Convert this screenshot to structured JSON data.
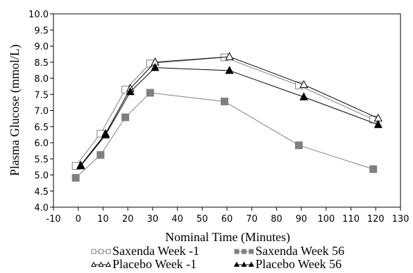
{
  "chart_data": {
    "type": "line",
    "title": "",
    "xlabel": "Nominal Time (Minutes)",
    "ylabel": "Plasma Glucose (mmol/L)",
    "xlim": [
      -10,
      130
    ],
    "ylim": [
      4.0,
      10.0
    ],
    "xticks": [
      -10,
      0,
      10,
      20,
      30,
      40,
      50,
      60,
      70,
      80,
      90,
      100,
      110,
      120,
      130
    ],
    "yticks": [
      "4.0",
      "4.5",
      "5.0",
      "5.5",
      "6.0",
      "6.5",
      "7.0",
      "7.5",
      "8.0",
      "8.5",
      "9.0",
      "9.5",
      "10.0"
    ],
    "grid": false,
    "legend_position": "bottom",
    "series": [
      {
        "name": "Saxenda Week -1",
        "color": "#7f7f7f",
        "marker": "open-square",
        "x": [
          -1,
          9,
          19,
          29,
          59,
          89,
          119
        ],
        "y": [
          5.28,
          6.28,
          7.65,
          8.46,
          8.65,
          7.78,
          6.72
        ]
      },
      {
        "name": "Saxenda Week 56",
        "color": "#7f7f7f",
        "marker": "filled-square",
        "x": [
          -1,
          9,
          19,
          29,
          59,
          89,
          119
        ],
        "y": [
          4.91,
          5.62,
          6.79,
          7.55,
          7.28,
          5.92,
          5.18
        ]
      },
      {
        "name": "Placebo Week -1",
        "color": "#000000",
        "marker": "open-triangle",
        "x": [
          1,
          11,
          21,
          31,
          61,
          91,
          121
        ],
        "y": [
          5.3,
          6.28,
          7.68,
          8.5,
          8.67,
          7.8,
          6.76
        ]
      },
      {
        "name": "Placebo Week 56",
        "color": "#000000",
        "marker": "filled-triangle",
        "x": [
          1,
          11,
          21,
          31,
          61,
          91,
          121
        ],
        "y": [
          5.28,
          6.24,
          7.58,
          8.33,
          8.24,
          7.42,
          6.56
        ]
      }
    ]
  }
}
